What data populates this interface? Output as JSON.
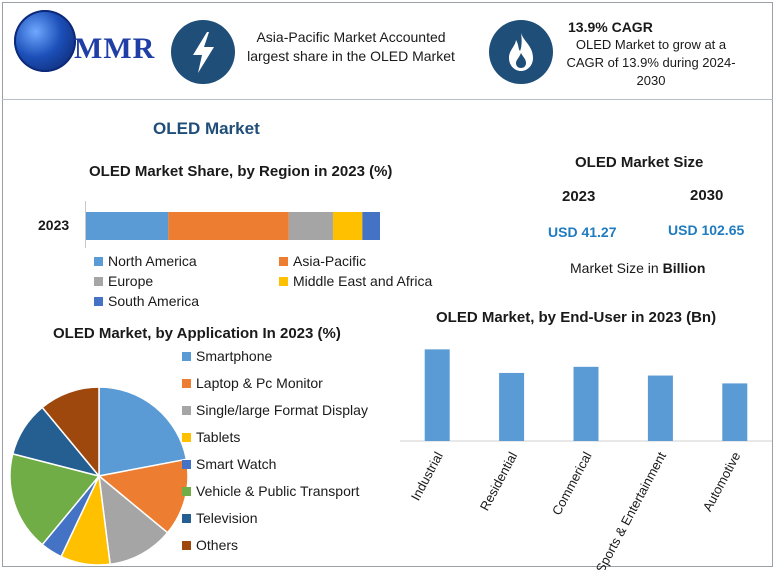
{
  "logo": {
    "text": "MMR"
  },
  "header": {
    "insight1": "Asia-Pacific Market Accounted largest share in the OLED Market",
    "cagr_title": "13.9% CAGR",
    "cagr_text": "OLED Market to grow at a CAGR of 13.9% during 2024-2030"
  },
  "main_title": "OLED Market",
  "colors": {
    "north_america": "#5b9bd5",
    "asia_pacific": "#ed7d31",
    "europe": "#a5a5a5",
    "mea": "#ffc000",
    "south_america": "#4472c4",
    "bar": "#5b9bd5",
    "icon_bg": "#1f4e79",
    "value_blue": "#1f7bbf"
  },
  "market_size": {
    "title": "OLED Market Size",
    "year1": "2023",
    "year2": "2030",
    "value1": "USD 41.27",
    "value2": "USD 102.65",
    "unit_note": "Market Size in Billion"
  },
  "chart_data": [
    {
      "type": "bar",
      "orientation": "horizontal-stacked",
      "title": "OLED Market Share, by Region in 2023 (%)",
      "categories": [
        "2023"
      ],
      "series": [
        {
          "name": "North America",
          "values": [
            28
          ]
        },
        {
          "name": "Asia-Pacific",
          "values": [
            41
          ]
        },
        {
          "name": "Europe",
          "values": [
            15
          ]
        },
        {
          "name": "Middle East and Africa",
          "values": [
            10
          ]
        },
        {
          "name": "South America",
          "values": [
            6
          ]
        }
      ],
      "legend": "bottom"
    },
    {
      "type": "pie",
      "title": "OLED Market, by Application In 2023 (%)",
      "categories": [
        "Smartphone",
        "Laptop & Pc Monitor",
        "Single/large Format Display",
        "Tablets",
        "Smart Watch",
        "Vehicle & Public Transport",
        "Television",
        "Others"
      ],
      "values": [
        22,
        14,
        12,
        9,
        4,
        18,
        10,
        11
      ],
      "legend": "right"
    },
    {
      "type": "bar",
      "title": "OLED Market, by End-User in 2023 (Bn)",
      "categories": [
        "Industrial",
        "Residential",
        "Commerical",
        "Sports & Entertainment",
        "Automotive"
      ],
      "values": [
        10.5,
        7.8,
        8.5,
        7.5,
        6.6
      ],
      "ylim": [
        0,
        11
      ]
    }
  ]
}
